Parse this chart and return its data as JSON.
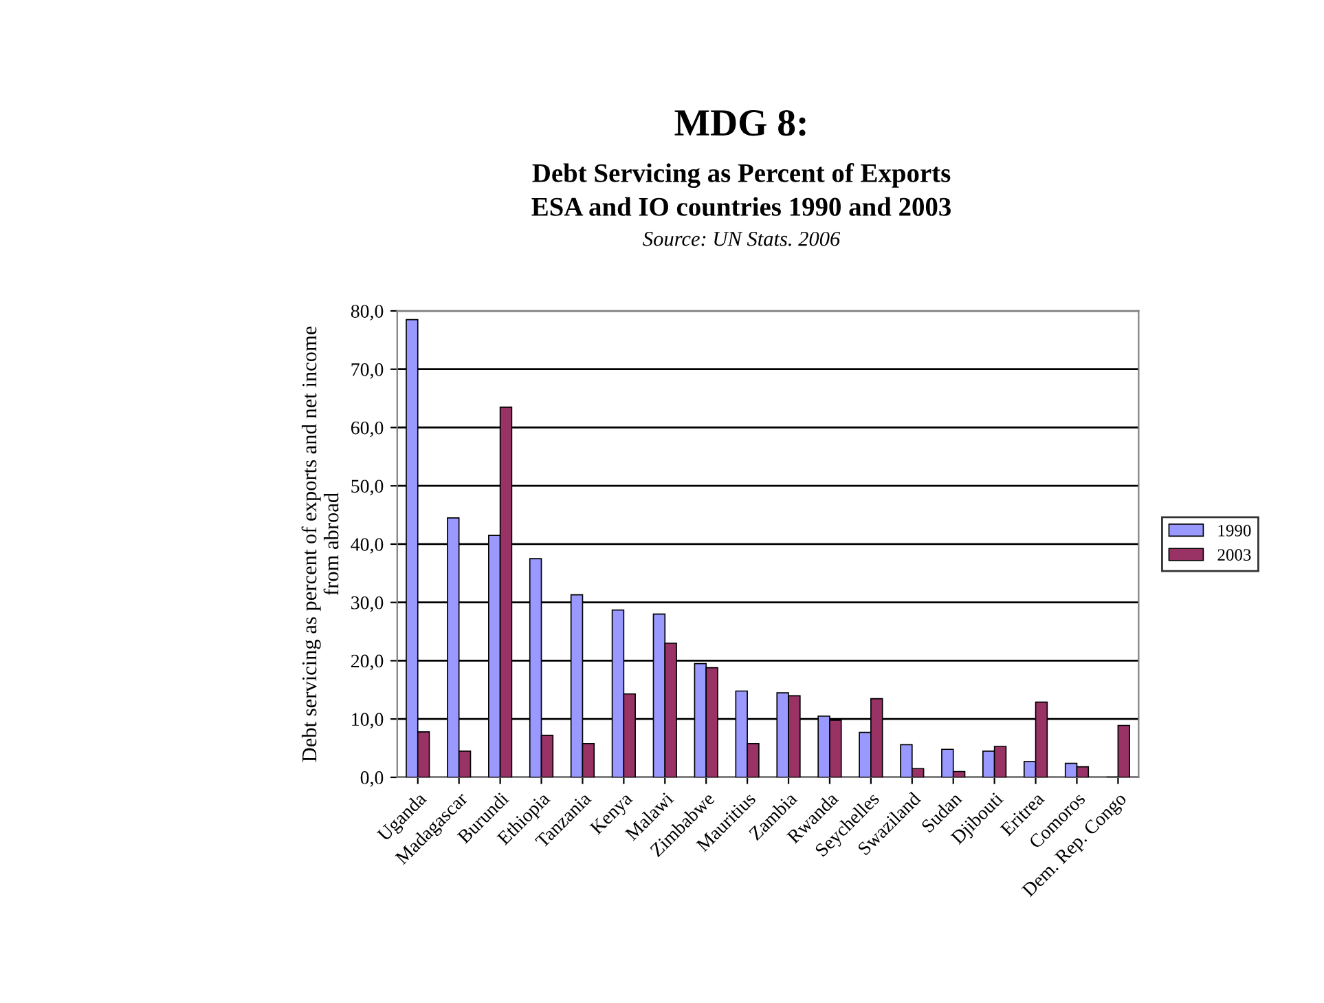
{
  "chart_data": {
    "type": "bar",
    "title": "MDG 8:",
    "subtitle": "Debt Servicing as Percent of Exports\nESA and IO countries 1990 and 2003",
    "annotations": [
      "Source: UN Stats. 2006"
    ],
    "ylabel": "Debt servicing as percent of exports and net income\nfrom abroad",
    "categories": [
      "Uganda",
      "Madagascar",
      "Burundi",
      "Ethiopia",
      "Tanzania",
      "Kenya",
      "Malawi",
      "Zimbabwe",
      "Mauritius",
      "Zambia",
      "Rwanda",
      "Seychelles",
      "Swaziland",
      "Sudan",
      "Djibouti",
      "Eritrea",
      "Comoros",
      "Dem. Rep. Congo"
    ],
    "series": [
      {
        "name": "1990",
        "color": "#9999ff",
        "values": [
          78.5,
          44.5,
          41.5,
          37.5,
          31.3,
          28.7,
          28.0,
          19.5,
          14.8,
          14.5,
          10.5,
          7.7,
          5.6,
          4.8,
          4.5,
          2.7,
          2.4,
          null
        ]
      },
      {
        "name": "2003",
        "color": "#993366",
        "values": [
          7.8,
          4.5,
          63.5,
          7.2,
          5.8,
          14.3,
          23.0,
          18.8,
          5.8,
          14.0,
          9.8,
          13.5,
          1.5,
          1.0,
          5.3,
          12.9,
          1.8,
          8.9
        ]
      }
    ],
    "ylim": [
      0,
      80
    ],
    "yticks": [
      {
        "value": 0,
        "label": "0,0"
      },
      {
        "value": 10,
        "label": "10,0"
      },
      {
        "value": 20,
        "label": "20,0"
      },
      {
        "value": 30,
        "label": "30,0"
      },
      {
        "value": 40,
        "label": "40,0"
      },
      {
        "value": 50,
        "label": "50,0"
      },
      {
        "value": 60,
        "label": "60,0"
      },
      {
        "value": 70,
        "label": "70,0"
      },
      {
        "value": 80,
        "label": "80,0"
      }
    ],
    "grid": "y",
    "legend": "right"
  }
}
